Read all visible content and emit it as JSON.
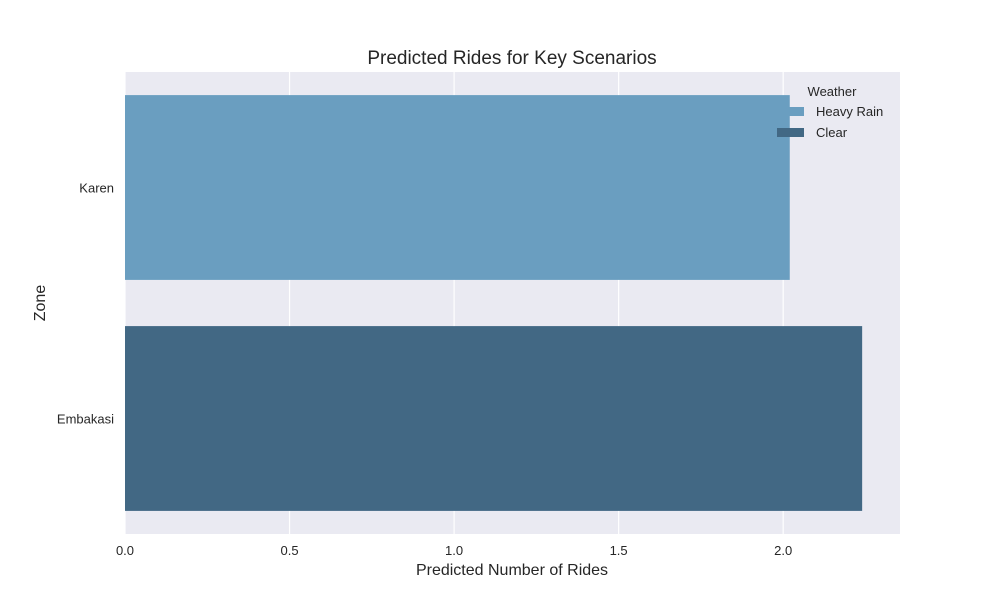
{
  "chart_data": {
    "type": "bar",
    "orientation": "horizontal",
    "title": "Predicted Rides for Key Scenarios",
    "xlabel": "Predicted Number of Rides",
    "ylabel": "Zone",
    "xlim": [
      0,
      2.355
    ],
    "xticks": [
      0.0,
      0.5,
      1.0,
      1.5,
      2.0
    ],
    "xtick_labels": [
      "0.0",
      "0.5",
      "1.0",
      "1.5",
      "2.0"
    ],
    "grid": true,
    "categories": [
      "Karen",
      "Embakasi"
    ],
    "bars": [
      {
        "category": "Karen",
        "series": "Heavy Rain",
        "value": 2.02
      },
      {
        "category": "Embakasi",
        "series": "Clear",
        "value": 2.24
      }
    ],
    "legend": {
      "title": "Weather",
      "position": "top-right",
      "entries": [
        {
          "name": "Heavy Rain",
          "color": "#6a9ec0"
        },
        {
          "name": "Clear",
          "color": "#426884"
        }
      ]
    },
    "background_color": "#eaeaf2"
  }
}
